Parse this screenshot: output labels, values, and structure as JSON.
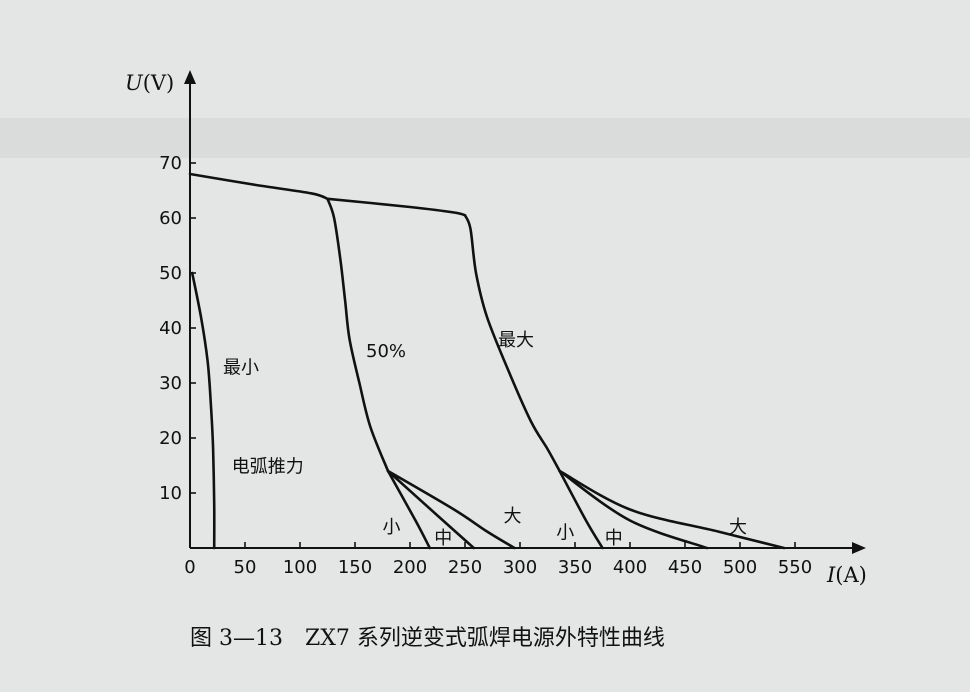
{
  "chart_data": {
    "type": "line",
    "title": "图 3—13　ZX7 系列逆变式弧焊电源外特性曲线",
    "xlabel_italic": "I",
    "xlabel_unit": "(A)",
    "ylabel_italic": "U",
    "ylabel_unit": "(V)",
    "xlim": [
      0,
      570
    ],
    "ylim": [
      0,
      82
    ],
    "xticks": [
      0,
      50,
      100,
      150,
      200,
      250,
      300,
      350,
      400,
      450,
      500,
      550
    ],
    "yticks": [
      10,
      20,
      30,
      40,
      50,
      60,
      70
    ],
    "grid": false,
    "series": [
      {
        "name": "最小",
        "x": [
          2,
          10,
          16,
          19,
          21,
          22,
          22
        ],
        "y": [
          50,
          42,
          34,
          26,
          18,
          8,
          0
        ]
      },
      {
        "name": "",
        "x": [
          0,
          60,
          110,
          125
        ],
        "y": [
          68,
          66,
          64.5,
          63.5
        ]
      },
      {
        "name": "50%",
        "x": [
          125,
          131,
          137,
          141,
          145,
          154,
          164,
          180
        ],
        "y": [
          63.5,
          60,
          52,
          45,
          38,
          30,
          22,
          14
        ]
      },
      {
        "name": "小",
        "x": [
          180,
          205,
          218
        ],
        "y": [
          14,
          5,
          0
        ]
      },
      {
        "name": "中",
        "x": [
          180,
          230,
          258
        ],
        "y": [
          14,
          5,
          0
        ]
      },
      {
        "name": "大",
        "x": [
          180,
          240,
          270,
          295
        ],
        "y": [
          14,
          7,
          3,
          0
        ]
      },
      {
        "name": "",
        "x": [
          125,
          200,
          240,
          250
        ],
        "y": [
          63.5,
          62,
          61,
          60.5
        ]
      },
      {
        "name": "最大",
        "x": [
          250,
          255,
          260,
          270,
          290,
          310,
          325,
          336
        ],
        "y": [
          60.5,
          58,
          50,
          42,
          32,
          23,
          18,
          14
        ]
      },
      {
        "name": "小",
        "x": [
          336,
          360,
          375
        ],
        "y": [
          14,
          5,
          0
        ]
      },
      {
        "name": "中",
        "x": [
          336,
          400,
          470
        ],
        "y": [
          14,
          5,
          0
        ]
      },
      {
        "name": "大",
        "x": [
          336,
          400,
          480,
          540
        ],
        "y": [
          14,
          7,
          3,
          0
        ]
      }
    ],
    "annotations": [
      {
        "text": "最小",
        "x": 30,
        "y": 33
      },
      {
        "text": "50%",
        "x": 160,
        "y": 36
      },
      {
        "text": "最大",
        "x": 280,
        "y": 38
      },
      {
        "text": "电弧推力",
        "x": 38,
        "y": 15
      },
      {
        "text": "小",
        "x": 175,
        "y": 4
      },
      {
        "text": "中",
        "x": 222,
        "y": 2
      },
      {
        "text": "大",
        "x": 285,
        "y": 6
      },
      {
        "text": "小",
        "x": 333,
        "y": 3
      },
      {
        "text": "中",
        "x": 377,
        "y": 2
      },
      {
        "text": "大",
        "x": 490,
        "y": 4
      }
    ]
  }
}
